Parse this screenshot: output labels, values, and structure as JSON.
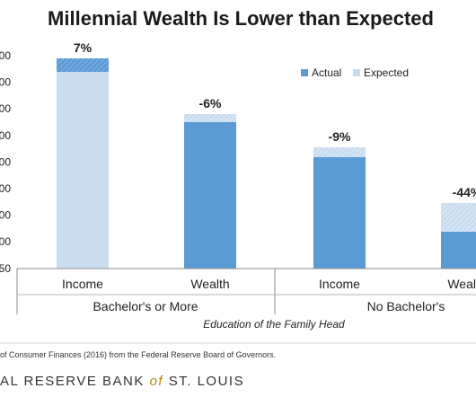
{
  "chart_data": {
    "type": "bar",
    "title": "Millennial Wealth Is Lower than Expected",
    "xlabel": "Education of the Family Head",
    "categories": [
      "Income",
      "Wealth",
      "Income",
      "Wealth"
    ],
    "groups": [
      {
        "label": "Bachelor's or More",
        "categories": [
          0,
          1
        ]
      },
      {
        "label": "No Bachelor's",
        "categories": [
          2,
          3
        ]
      }
    ],
    "ylim": [
      0.8,
      1.0
    ],
    "series": [
      {
        "name": "Actual",
        "color": "#5b9bd5",
        "values": [
          null,
          null,
          null,
          null
        ]
      },
      {
        "name": "Expected",
        "color": "#c9ddf0",
        "values": [
          null,
          null,
          null,
          null
        ]
      }
    ],
    "bar_labels": [
      "7%",
      "-6%",
      "-9%",
      "-44%"
    ],
    "legend_position": "top-right",
    "grid": false
  },
  "y_tick_labels": [
    "00",
    "00",
    "00",
    "00",
    "00",
    "00",
    "00",
    "00",
    "50"
  ],
  "source": "of Consumer Finances (2016) from the Federal Reserve Board of Governors.",
  "branding": {
    "before": "AL RESERVE BANK ",
    "of": "of",
    "after": " ST. LOUIS"
  }
}
